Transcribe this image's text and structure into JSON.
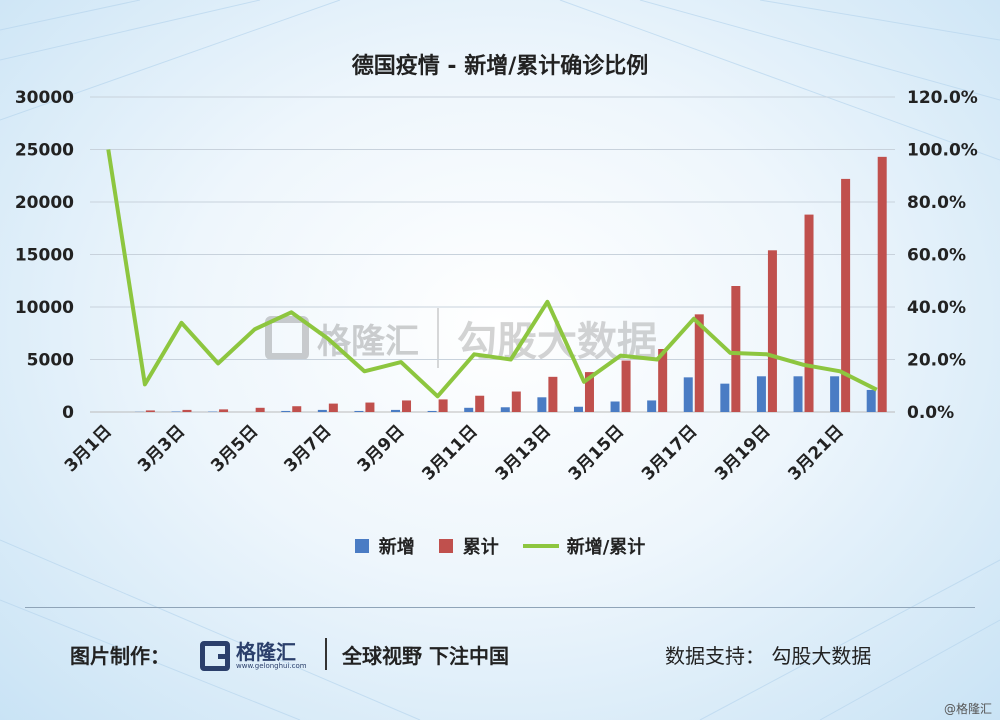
{
  "chart_data": {
    "type": "bar",
    "title": "德国疫情 - 新增/累计确诊比例",
    "categories": [
      "3月1日",
      "3月2日",
      "3月3日",
      "3月4日",
      "3月5日",
      "3月6日",
      "3月7日",
      "3月8日",
      "3月9日",
      "3月10日",
      "3月11日",
      "3月12日",
      "3月13日",
      "3月14日",
      "3月15日",
      "3月16日",
      "3月17日",
      "3月18日",
      "3月19日",
      "3月20日",
      "3月21日",
      "3月22日"
    ],
    "tick_labels": [
      "3月1日",
      "3月3日",
      "3月5日",
      "3月7日",
      "3月9日",
      "3月11日",
      "3月13日",
      "3月15日",
      "3月17日",
      "3月19日",
      "3月21日"
    ],
    "left_axis": {
      "min": 0,
      "max": 30000,
      "ticks": [
        "0",
        "5000",
        "10000",
        "15000",
        "20000",
        "25000",
        "30000"
      ]
    },
    "right_axis": {
      "min": 0,
      "max": 1.2,
      "ticks": [
        "0.0%",
        "20.0%",
        "40.0%",
        "60.0%",
        "80.0%",
        "100.0%",
        "120.0%"
      ]
    },
    "grid": true,
    "legend_position": "bottom",
    "series": [
      {
        "name": "新增",
        "kind": "bar",
        "axis": "left",
        "color": "#4a7cc4",
        "values": [
          0,
          20,
          50,
          40,
          0,
          100,
          200,
          100,
          200,
          100,
          400,
          450,
          1400,
          500,
          1000,
          1100,
          3300,
          2700,
          3400,
          3400,
          3400,
          2100
        ]
      },
      {
        "name": "累计",
        "kind": "bar",
        "axis": "left",
        "color": "#c0504d",
        "values": [
          0,
          150,
          200,
          250,
          400,
          550,
          800,
          900,
          1100,
          1200,
          1550,
          1950,
          3350,
          3800,
          4900,
          6000,
          9300,
          12000,
          15400,
          18800,
          22200,
          24300
        ]
      },
      {
        "name": "新增/累计",
        "kind": "line",
        "axis": "right",
        "color": "#8dc63f",
        "values": [
          1.0,
          0.105,
          0.34,
          0.185,
          0.315,
          0.38,
          0.28,
          0.155,
          0.19,
          0.06,
          0.22,
          0.2,
          0.42,
          0.115,
          0.215,
          0.2,
          0.355,
          0.225,
          0.22,
          0.18,
          0.155,
          0.085
        ]
      }
    ]
  },
  "legend": {
    "items": [
      "新增",
      "累计",
      "新增/累计"
    ]
  },
  "watermark": {
    "brand": "格隆汇",
    "url": "www.gelonghui.com",
    "partner": "勾股大数据"
  },
  "footer": {
    "made_by_label": "图片制作：",
    "logo_text": "格隆汇",
    "logo_url": "www.gelonghui.com",
    "slogan": "全球视野  下注中国",
    "support_label": "数据支持：  勾股大数据"
  },
  "credit": "@格隆汇",
  "colors": {
    "bar_new": "#4a7cc4",
    "bar_total": "#c0504d",
    "line": "#8dc63f"
  }
}
